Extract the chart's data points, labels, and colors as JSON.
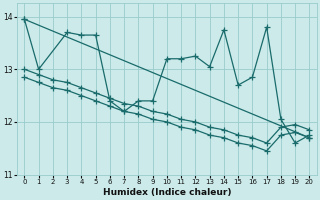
{
  "xlabel": "Humidex (Indice chaleur)",
  "xlim": [
    -0.5,
    20.5
  ],
  "ylim": [
    11,
    14.25
  ],
  "yticks": [
    11,
    12,
    13,
    14
  ],
  "xticks": [
    0,
    1,
    2,
    3,
    4,
    5,
    6,
    7,
    8,
    9,
    10,
    11,
    12,
    13,
    14,
    15,
    16,
    17,
    18,
    19,
    20
  ],
  "bg_color": "#cceaea",
  "line_color": "#1a6b6b",
  "grid_color": "#99cccc",
  "series": [
    {
      "x": [
        0,
        1,
        3,
        4,
        5,
        6,
        7,
        8,
        9,
        10,
        11,
        12,
        13,
        14,
        15,
        16,
        17,
        18,
        19,
        20
      ],
      "y": [
        13.95,
        13.0,
        13.7,
        13.65,
        13.65,
        12.4,
        12.2,
        12.4,
        12.4,
        13.2,
        13.2,
        13.25,
        13.05,
        13.75,
        12.7,
        12.85,
        13.8,
        12.05,
        11.6,
        11.75
      ]
    },
    {
      "x": [
        0,
        20
      ],
      "y": [
        13.95,
        11.7
      ]
    },
    {
      "x": [
        0,
        1,
        2,
        3,
        4,
        5,
        6,
        7,
        8,
        9,
        10,
        11,
        12,
        13,
        14,
        15,
        16,
        17,
        18,
        19,
        20
      ],
      "y": [
        13.0,
        12.9,
        12.8,
        12.75,
        12.65,
        12.55,
        12.45,
        12.35,
        12.3,
        12.2,
        12.15,
        12.05,
        12.0,
        11.9,
        11.85,
        11.75,
        11.7,
        11.6,
        11.9,
        11.95,
        11.85
      ]
    },
    {
      "x": [
        0,
        1,
        2,
        3,
        4,
        5,
        6,
        7,
        8,
        9,
        10,
        11,
        12,
        13,
        14,
        15,
        16,
        17,
        18,
        19,
        20
      ],
      "y": [
        12.85,
        12.75,
        12.65,
        12.6,
        12.5,
        12.4,
        12.3,
        12.2,
        12.15,
        12.05,
        12.0,
        11.9,
        11.85,
        11.75,
        11.7,
        11.6,
        11.55,
        11.45,
        11.75,
        11.8,
        11.7
      ]
    }
  ],
  "marker": "+",
  "markersize": 4,
  "linewidth": 0.9
}
